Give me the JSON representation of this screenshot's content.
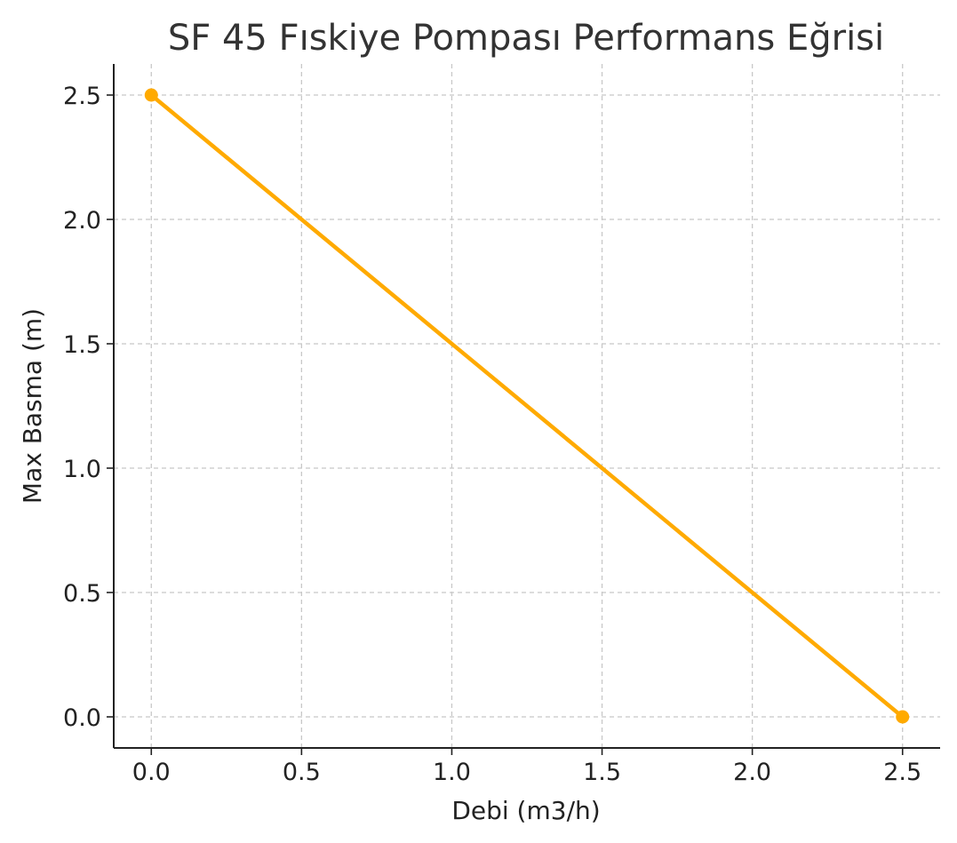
{
  "chart_data": {
    "type": "line",
    "title": "SF 45 Fıskiye Pompası Performans Eğrisi",
    "xlabel": "Debi (m3/h)",
    "ylabel": "Max Basma (m)",
    "xlim": [
      -0.125,
      2.625
    ],
    "ylim": [
      -0.125,
      2.625
    ],
    "xticks": [
      "0.0",
      "0.5",
      "1.0",
      "1.5",
      "2.0",
      "2.5"
    ],
    "yticks": [
      "0.0",
      "0.5",
      "1.0",
      "1.5",
      "2.0",
      "2.5"
    ],
    "grid": true,
    "series": [
      {
        "x": [
          0.0,
          2.5
        ],
        "y": [
          2.5,
          0.0
        ],
        "color": "#FFAA00",
        "marker": "circle"
      }
    ]
  }
}
